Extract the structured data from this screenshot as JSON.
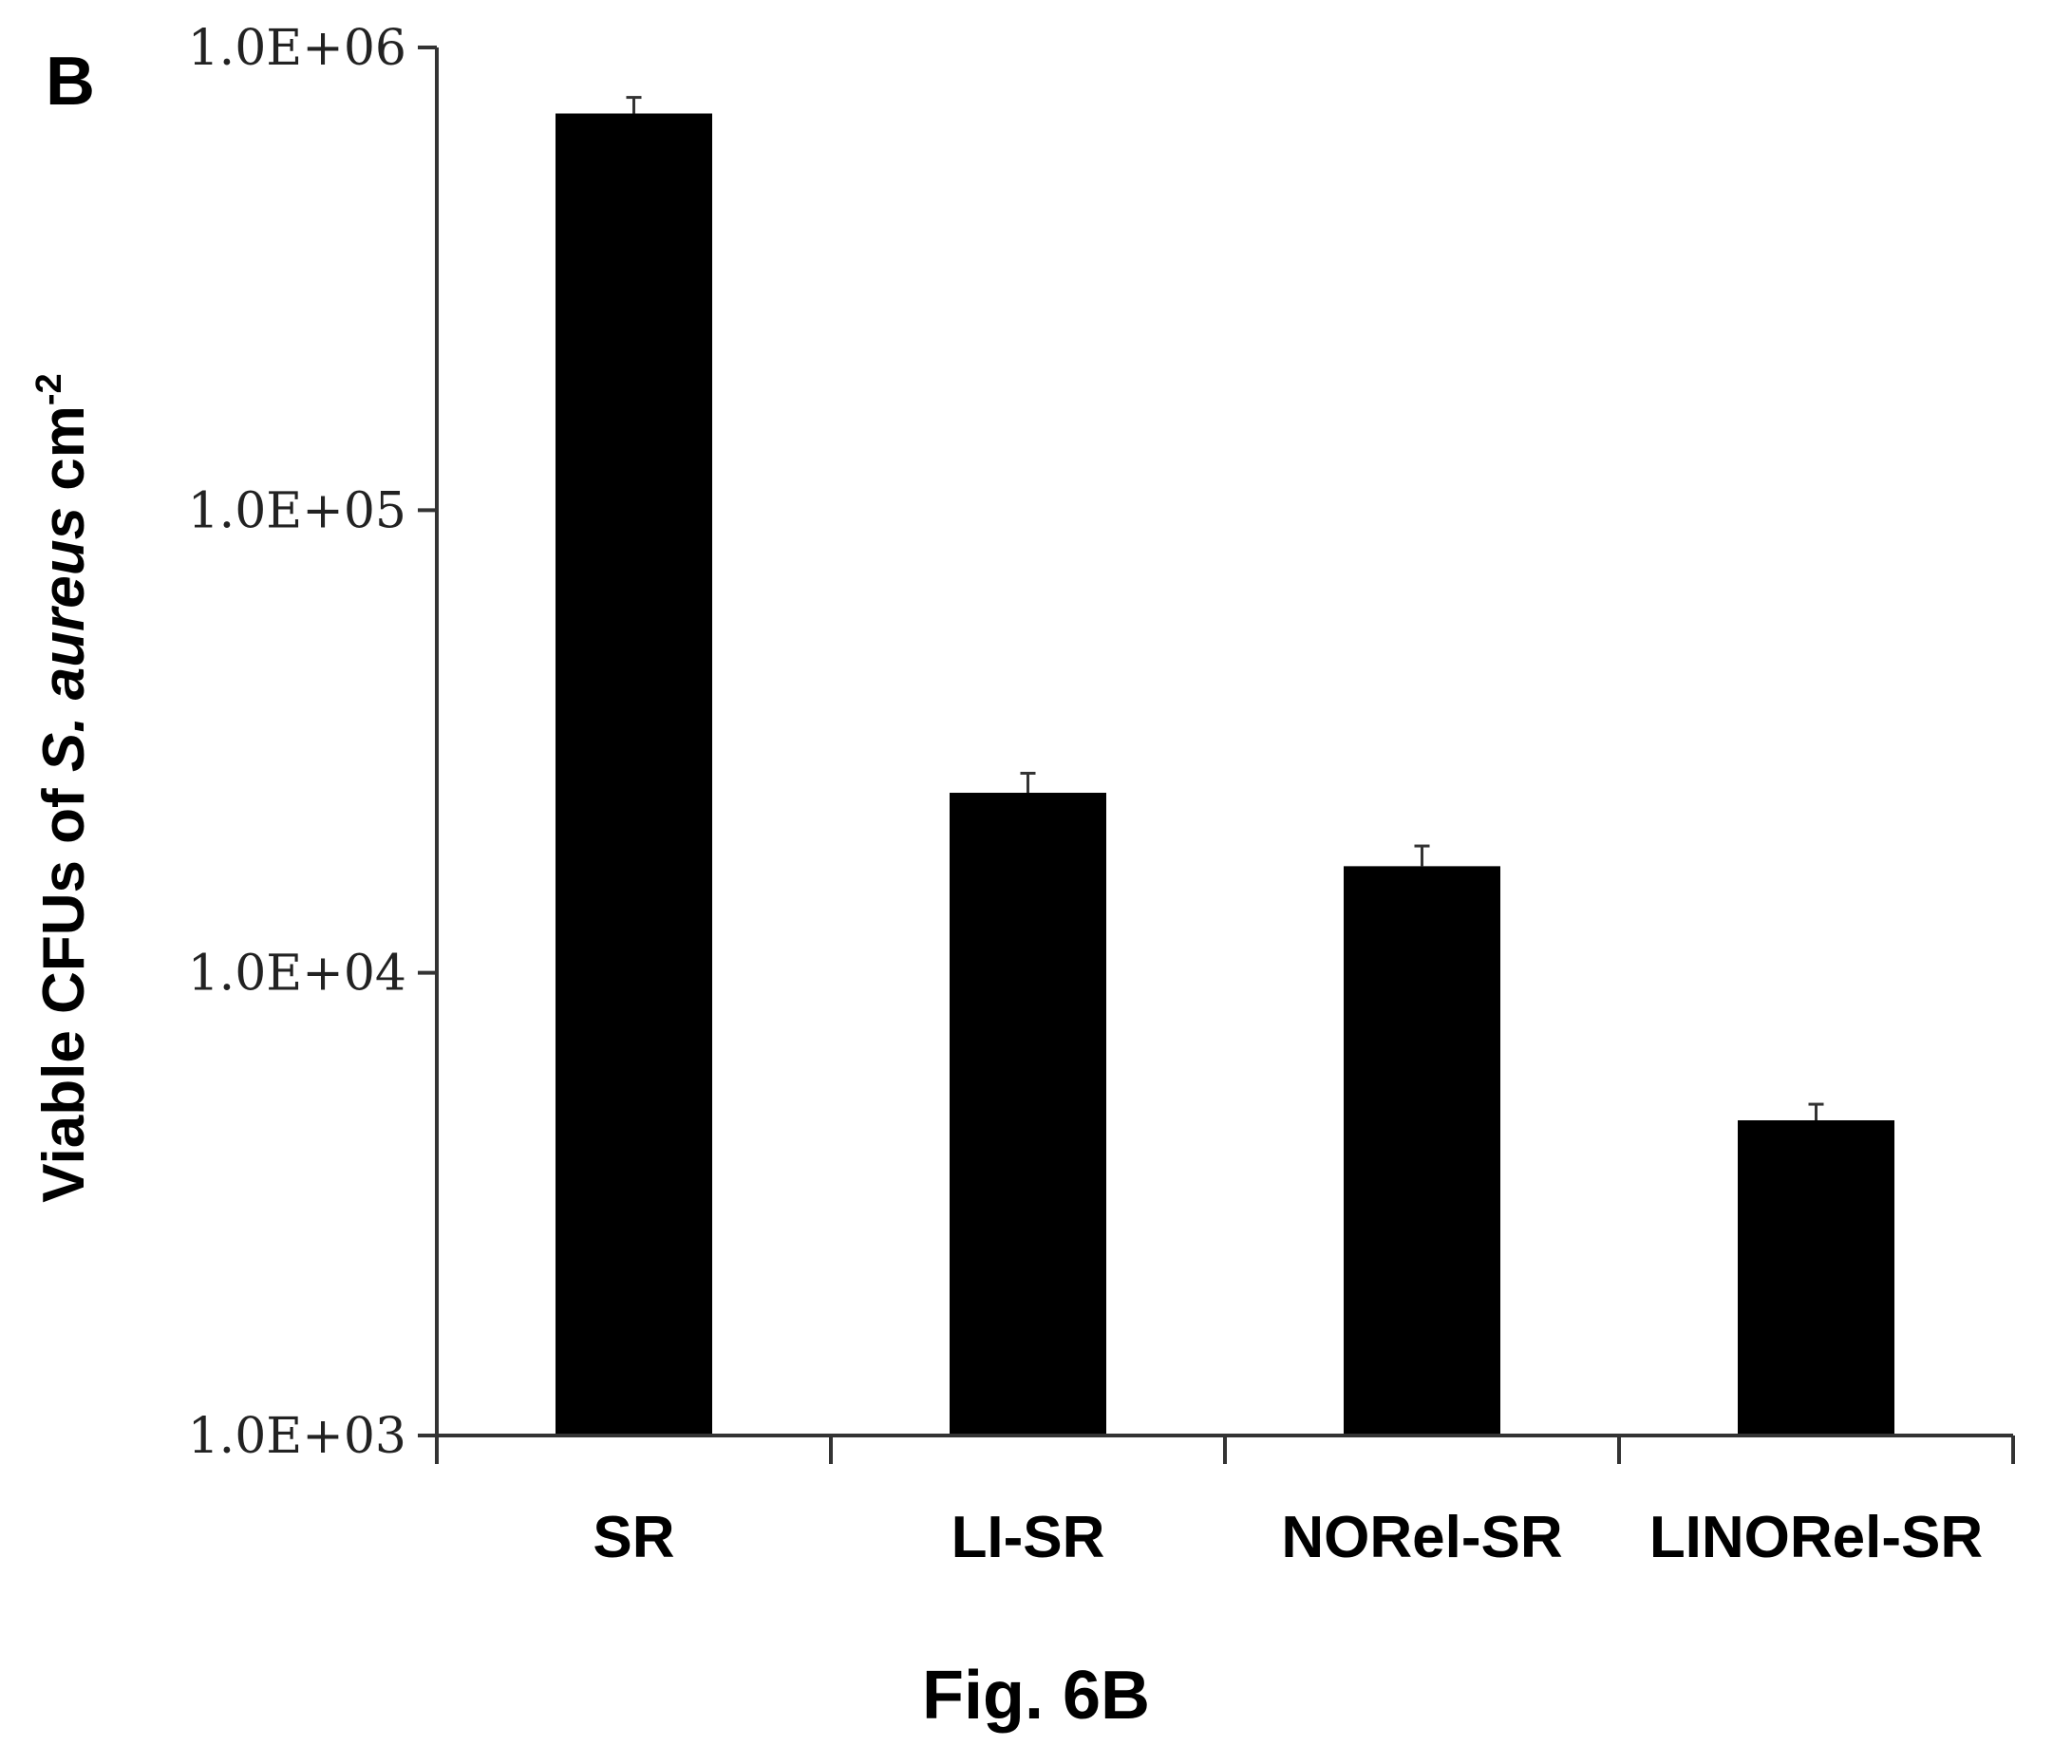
{
  "panel_label": "B",
  "caption": "Fig. 6B",
  "chart_data": {
    "type": "bar",
    "title": "",
    "ylabel_parts": [
      "Viable CFUs of ",
      "S. aureus",
      " cm",
      "-2"
    ],
    "xlabel": "",
    "categories": [
      "SR",
      "LI-SR",
      "NORel-SR",
      "LINORel-SR"
    ],
    "values": [
      720000,
      24500,
      17000,
      4800
    ],
    "errors": [
      60000,
      2500,
      1800,
      400
    ],
    "yscale": "log",
    "ylim": [
      1000,
      1000000
    ],
    "yticks": [
      1000,
      10000,
      100000,
      1000000
    ],
    "ytick_labels": [
      "1.0E+03",
      "1.0E+04",
      "1.0E+05",
      "1.0E+06"
    ],
    "bar_color": "#000000",
    "grid": false,
    "legend": "none"
  }
}
